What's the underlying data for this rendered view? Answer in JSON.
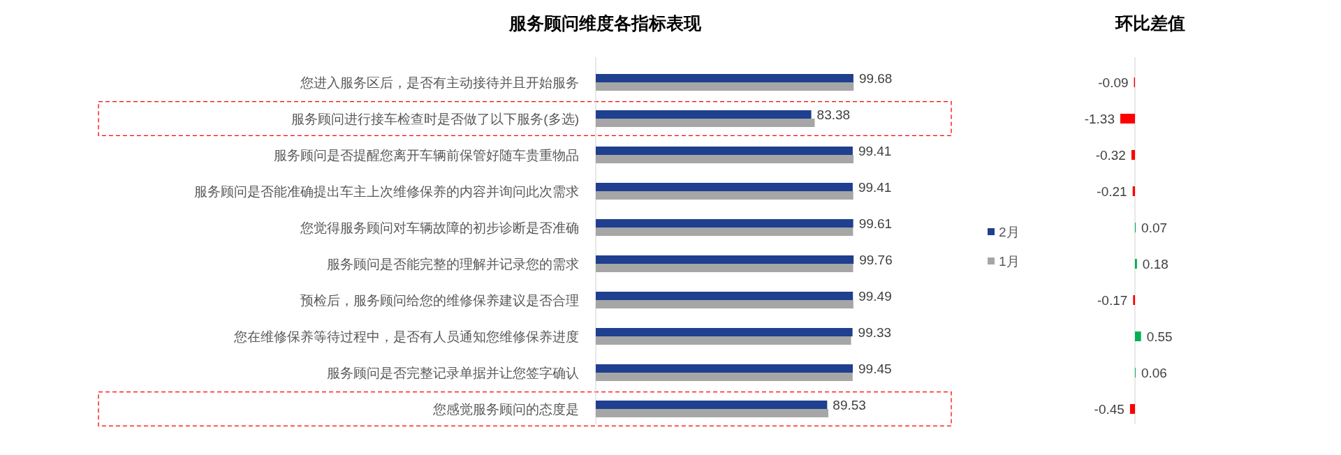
{
  "chart_data": [
    {
      "type": "bar",
      "orientation": "horizontal",
      "title": "服务顾问维度各指标表现",
      "categories": [
        "您进入服务区后，是否有主动接待并且开始服务",
        "服务顾问进行接车检查时是否做了以下服务(多选)",
        "服务顾问是否提醒您离开车辆前保管好随车贵重物品",
        "服务顾问是否能准确提出车主上次维修保养的内容并询问此次需求",
        "您觉得服务顾问对车辆故障的初步诊断是否准确",
        "服务顾问是否能完整的理解并记录您的需求",
        "预检后，服务顾问给您的维修保养建议是否合理",
        "您在维修保养等待过程中，是否有人员通知您维修保养进度",
        "服务顾问是否完整记录单据并让您签字确认",
        "您感觉服务顾问的态度是"
      ],
      "series": [
        {
          "name": "2月",
          "color": "#1f3f8f",
          "values": [
            99.68,
            83.38,
            99.41,
            99.41,
            99.61,
            99.76,
            99.49,
            99.33,
            99.45,
            89.53
          ],
          "value_labels": [
            "99.68",
            "83.38",
            "99.41",
            "99.41",
            "99.61",
            "99.76",
            "99.49",
            "99.33",
            "99.45",
            "89.53"
          ]
        },
        {
          "name": "1月",
          "color": "#a6a6a6",
          "values": [
            99.77,
            84.71,
            99.73,
            99.62,
            99.54,
            99.58,
            99.66,
            98.78,
            99.39,
            89.98
          ]
        }
      ],
      "legend": "right"
    },
    {
      "type": "bar",
      "orientation": "horizontal",
      "title": "环比差值",
      "categories": [
        null,
        null,
        null,
        null,
        null,
        null,
        null,
        null,
        null,
        null
      ],
      "values": [
        -0.09,
        -1.33,
        -0.32,
        -0.21,
        0.07,
        0.18,
        -0.17,
        0.55,
        0.06,
        -0.45
      ],
      "colors": [
        "#ff0000",
        "#ff0000",
        "#ff0000",
        "#ff0000",
        "#00b050",
        "#00b050",
        "#ff0000",
        "#00b050",
        "#00b050",
        "#ff0000"
      ],
      "data_labels": true
    }
  ]
}
